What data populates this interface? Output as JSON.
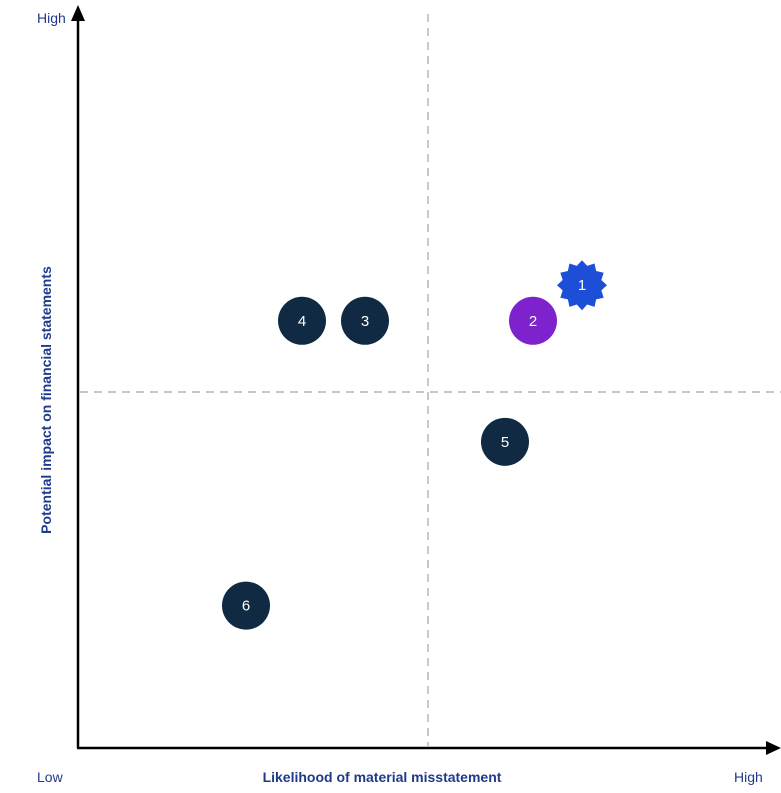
{
  "chart_data": {
    "type": "scatter",
    "xlabel": "Likelihood of material misstatement",
    "ylabel": "Potential impact on financial statements",
    "x_low_label": "Low",
    "x_high_label": "High",
    "y_high_label": "High",
    "xlim": [
      0,
      10
    ],
    "ylim": [
      0,
      10
    ],
    "grid": false,
    "quadrant_lines": {
      "x": 5,
      "y": 5
    },
    "points": [
      {
        "label": "1",
        "x": 7.2,
        "y": 6.5,
        "shape": "badge",
        "color": "#1d4ed8"
      },
      {
        "label": "2",
        "x": 6.5,
        "y": 6.0,
        "shape": "circle",
        "color": "#7e22ce"
      },
      {
        "label": "3",
        "x": 4.1,
        "y": 6.0,
        "shape": "circle",
        "color": "#102a43"
      },
      {
        "label": "4",
        "x": 3.2,
        "y": 6.0,
        "shape": "circle",
        "color": "#102a43"
      },
      {
        "label": "5",
        "x": 6.1,
        "y": 4.3,
        "shape": "circle",
        "color": "#102a43"
      },
      {
        "label": "6",
        "x": 2.4,
        "y": 2.0,
        "shape": "circle",
        "color": "#102a43"
      }
    ]
  }
}
